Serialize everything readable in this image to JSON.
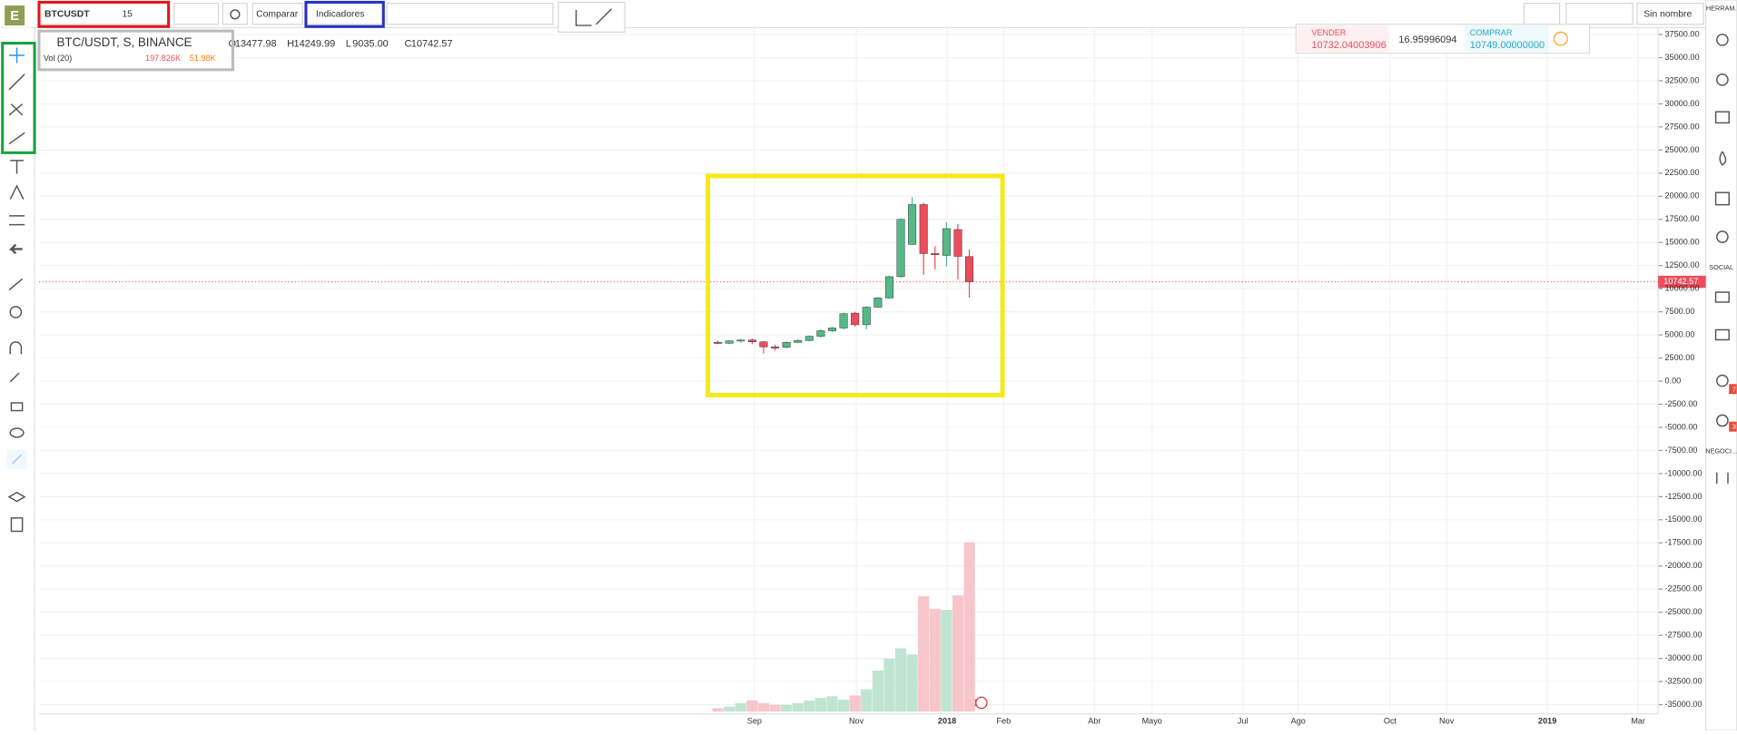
{
  "toolbar": {
    "logo": "E",
    "symbol": "BTCUSDT",
    "interval": "15",
    "compare": "Comparar",
    "indicators": "Indicadores",
    "layout_name": "Sin nombre"
  },
  "right_panel": {
    "tools": "HERRAM.",
    "social": "SOCIAL",
    "trade": "NEGOCI...",
    "badges": [
      "7",
      "3"
    ]
  },
  "trade_widget": {
    "sell": "VENDER",
    "sell_price": "10732.04003906",
    "spread": "16.95996094",
    "buy": "COMPRAR",
    "buy_price": "10749.00000000"
  },
  "chart_data": {
    "type": "candlestick",
    "title": "BTC/USDT, S, BINANCE",
    "legend": {
      "prefixes": [
        "O",
        "H",
        "L",
        "C"
      ],
      "low_label": "9035.00"
    },
    "open": [
      4200,
      4100,
      4350,
      4450,
      4250,
      3700,
      3650,
      4200,
      4400,
      4850,
      5450,
      5750,
      7350,
      6100,
      8000,
      9000,
      11300,
      14800,
      19100,
      13800,
      13600,
      16400,
      13477.98
    ],
    "high": [
      4400,
      4450,
      4550,
      4600,
      4350,
      3950,
      4300,
      4500,
      4950,
      5600,
      5900,
      7400,
      7500,
      8100,
      9100,
      11400,
      17600,
      19900,
      19300,
      14600,
      17200,
      17000,
      14249.99
    ],
    "low": [
      4000,
      4000,
      4150,
      4000,
      3000,
      3300,
      3550,
      4100,
      4300,
      4700,
      5300,
      5600,
      5900,
      5600,
      7900,
      8900,
      11200,
      14700,
      11500,
      12100,
      12400,
      11000,
      9035.0
    ],
    "close": [
      4100,
      4350,
      4450,
      4250,
      3700,
      3650,
      4200,
      4400,
      4850,
      5450,
      5750,
      7300,
      6100,
      8000,
      9000,
      11300,
      17500,
      19100,
      13800,
      13700,
      16500,
      13500,
      10742.57
    ],
    "up_color": "#53b987",
    "down_color": "#eb4d5c",
    "volume": {
      "title": "Vol (20)",
      "last_label": "197.826K",
      "ma_label": "51.98K",
      "up_color": "#bfe5d2",
      "down_color": "#f7c6ca",
      "values": [
        4,
        6,
        10,
        13,
        10,
        8,
        8,
        10,
        13,
        16,
        18,
        14,
        19,
        26,
        48,
        62,
        74,
        67,
        135,
        120,
        119,
        136,
        197.826
      ]
    },
    "x_labels": [
      "Sep",
      "Nov",
      "2018",
      "Feb",
      "Abr",
      "Mayo",
      "Jul",
      "Ago",
      "Oct",
      "Nov",
      "2019",
      "Mar"
    ],
    "ylim": [
      -36000,
      38600
    ],
    "yticks": [
      {
        "value": 37500,
        "label": "37500.00"
      },
      {
        "value": 35000,
        "label": "35000.00"
      },
      {
        "value": 32500,
        "label": "32500.00"
      },
      {
        "value": 30000,
        "label": "30000.00"
      },
      {
        "value": 27500,
        "label": "27500.00"
      },
      {
        "value": 25000,
        "label": "25000.00"
      },
      {
        "value": 22500,
        "label": "22500.00"
      },
      {
        "value": 20000,
        "label": "20000.00"
      },
      {
        "value": 17500,
        "label": "17500.00"
      },
      {
        "value": 15000,
        "label": "15000.00"
      },
      {
        "value": 12500,
        "label": "12500.00"
      },
      {
        "value": 10000,
        "label": "10000.00"
      },
      {
        "value": 7500,
        "label": "7500.00"
      },
      {
        "value": 5000,
        "label": "5000.00"
      },
      {
        "value": 2500,
        "label": "2500.00"
      },
      {
        "value": 0,
        "label": "0.00"
      },
      {
        "value": -2500,
        "label": "-2500.00"
      },
      {
        "value": -5000,
        "label": "-5000.00"
      },
      {
        "value": -7500,
        "label": "-7500.00"
      },
      {
        "value": -10000,
        "label": "-10000.00"
      },
      {
        "value": -12500,
        "label": "-12500.00"
      },
      {
        "value": -15000,
        "label": "-15000.00"
      },
      {
        "value": -17500,
        "label": "-17500.00"
      },
      {
        "value": -20000,
        "label": "-20000.00"
      },
      {
        "value": -22500,
        "label": "-22500.00"
      },
      {
        "value": -25000,
        "label": "-25000.00"
      },
      {
        "value": -27500,
        "label": "-27500.00"
      },
      {
        "value": -30000,
        "label": "-30000.00"
      },
      {
        "value": -32500,
        "label": "-32500.00"
      },
      {
        "value": -35000,
        "label": "-35000.00"
      }
    ]
  }
}
